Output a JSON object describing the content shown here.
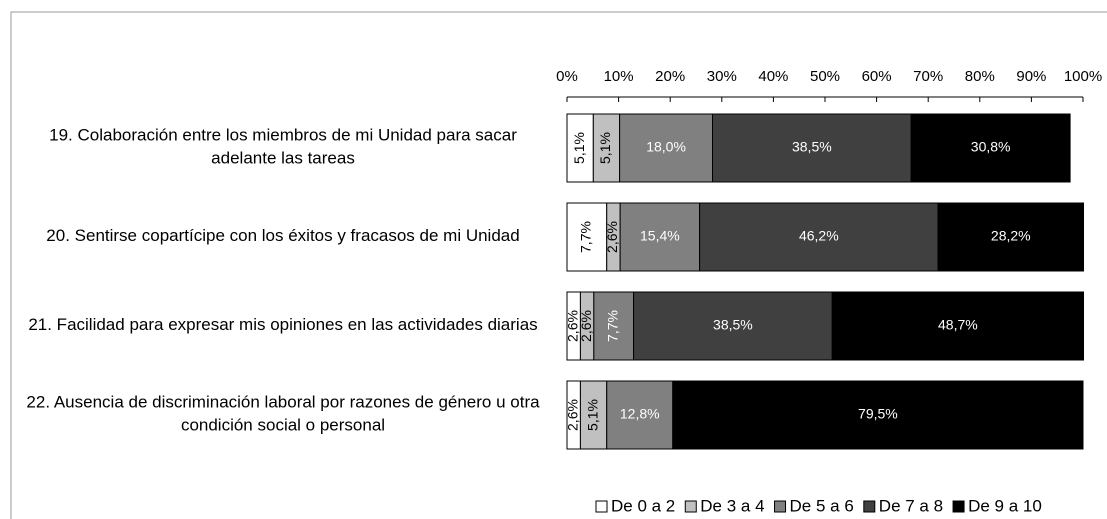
{
  "chart_data": {
    "type": "stacked_barh",
    "categories": [
      "19. Colaboración entre los miembros de mi Unidad para sacar adelante las tareas",
      "20. Sentirse copartícipe con los éxitos y fracasos de mi Unidad",
      "21. Facilidad para expresar mis opiniones en las actividades diarias",
      "22. Ausencia de discriminación laboral por razones de género u otra condición social o personal"
    ],
    "series": [
      {
        "name": "De 0 a 2",
        "color": "#ffffff",
        "values": [
          5.1,
          7.7,
          2.6,
          2.6
        ],
        "value_labels": [
          "5,1%",
          "7,7%",
          "2,6%",
          "2,6%"
        ]
      },
      {
        "name": "De 3 a 4",
        "color": "#c0c0c0",
        "values": [
          5.1,
          2.6,
          2.6,
          5.1
        ],
        "value_labels": [
          "5,1%",
          "2,6%",
          "2,6%",
          "5,1%"
        ]
      },
      {
        "name": "De 5 a 6",
        "color": "#808080",
        "values": [
          18.0,
          15.4,
          7.7,
          12.8
        ],
        "value_labels": [
          "18,0%",
          "15,4%",
          "7,7%",
          "12,8%"
        ]
      },
      {
        "name": "De 7 a 8",
        "color": "#404040",
        "values": [
          38.5,
          46.2,
          38.5,
          0
        ],
        "value_labels": [
          "38,5%",
          "46,2%",
          "38,5%",
          null
        ]
      },
      {
        "name": "De 9 a 10",
        "color": "#000000",
        "values": [
          30.8,
          28.2,
          48.7,
          79.5
        ],
        "value_labels": [
          "30,8%",
          "28,2%",
          "48,7%",
          "79,5%"
        ]
      }
    ],
    "xlim": [
      0,
      100
    ],
    "xticks": [
      {
        "value": 0,
        "label": "0%"
      },
      {
        "value": 10,
        "label": "10%"
      },
      {
        "value": 20,
        "label": "20%"
      },
      {
        "value": 30,
        "label": "30%"
      },
      {
        "value": 40,
        "label": "40%"
      },
      {
        "value": 50,
        "label": "50%"
      },
      {
        "value": 60,
        "label": "60%"
      },
      {
        "value": 70,
        "label": "70%"
      },
      {
        "value": 80,
        "label": "80%"
      },
      {
        "value": 90,
        "label": "90%"
      },
      {
        "value": 100,
        "label": "100%"
      }
    ],
    "legend": "bottom"
  }
}
